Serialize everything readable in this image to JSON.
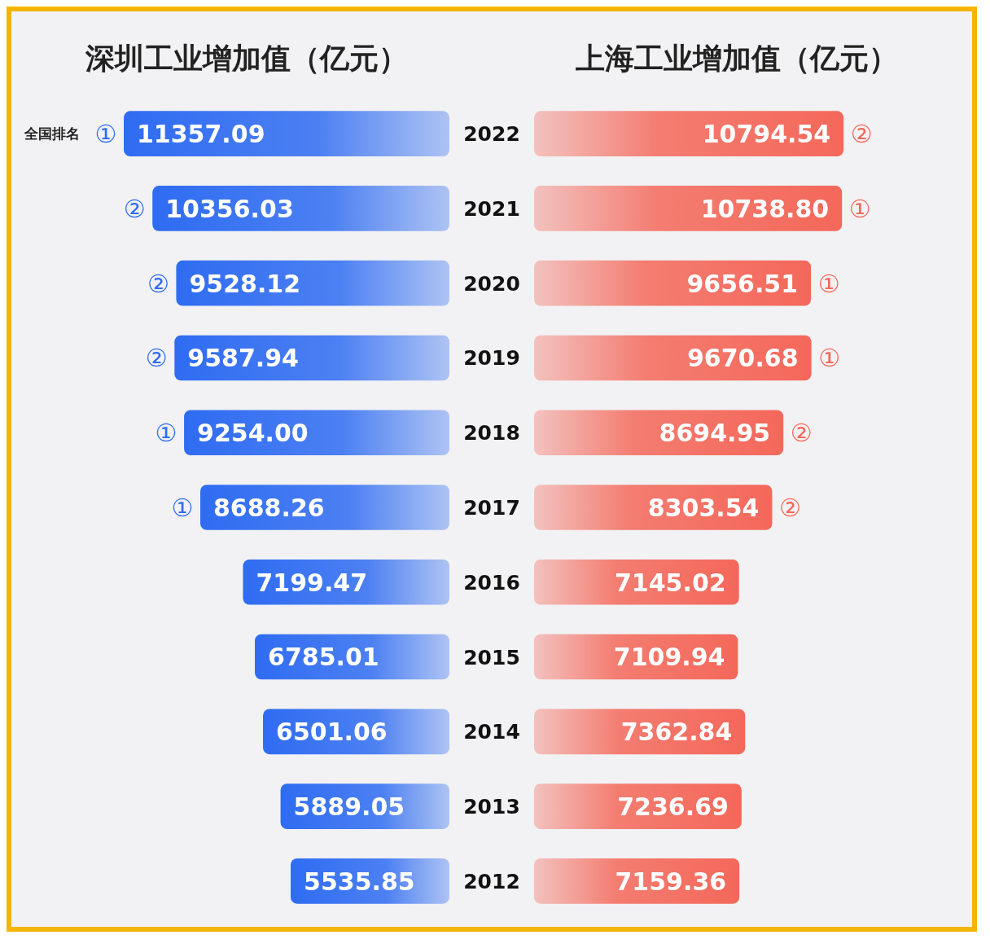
{
  "chart_data": [
    {
      "type": "bar",
      "orientation": "horizontal",
      "title": "深圳工业增加值（亿元）",
      "color": "#2f6cf2",
      "tick_labels": "y",
      "categories": [
        "2022",
        "2021",
        "2020",
        "2019",
        "2018",
        "2017",
        "2016",
        "2015",
        "2014",
        "2013",
        "2012"
      ],
      "values": [
        11357.09,
        10356.03,
        9528.12,
        9587.94,
        9254.0,
        8688.26,
        7199.47,
        6785.01,
        6501.06,
        5889.05,
        5535.85
      ],
      "value_labels": [
        "11357.09",
        "10356.03",
        "9528.12",
        "9587.94",
        "9254.00",
        "8688.26",
        "7199.47",
        "6785.01",
        "6501.06",
        "5889.05",
        "5535.85"
      ],
      "annotations": [
        "全国排名",
        {
          "text": "①",
          "x": 11357.09,
          "y": "2022"
        },
        {
          "text": "②",
          "x": 10356.03,
          "y": "2021"
        },
        {
          "text": "②",
          "x": 9528.12,
          "y": "2020"
        },
        {
          "text": "②",
          "x": 9587.94,
          "y": "2019"
        },
        {
          "text": "①",
          "x": 9254.0,
          "y": "2018"
        },
        {
          "text": "①",
          "x": 8688.26,
          "y": "2017"
        }
      ]
    },
    {
      "type": "bar",
      "orientation": "horizontal",
      "title": "上海工业增加值（亿元）",
      "color": "#f4685a",
      "tick_labels": false,
      "categories": [
        "2022",
        "2021",
        "2020",
        "2019",
        "2018",
        "2017",
        "2016",
        "2015",
        "2014",
        "2013",
        "2012"
      ],
      "values": [
        10794.54,
        10738.8,
        9656.51,
        9670.68,
        8694.95,
        8303.54,
        7145.02,
        7109.94,
        7362.84,
        7236.69,
        7159.36
      ],
      "value_labels": [
        "10794.54",
        "10738.80",
        "9656.51",
        "9670.68",
        "8694.95",
        "8303.54",
        "7145.02",
        "7109.94",
        "7362.84",
        "7236.69",
        "7159.36"
      ],
      "annotations": [
        {
          "text": "②",
          "x": 10794.54,
          "y": "2022"
        },
        {
          "text": "①",
          "x": 10738.8,
          "y": "2021"
        },
        {
          "text": "①",
          "x": 9656.51,
          "y": "2020"
        },
        {
          "text": "①",
          "x": 9670.68,
          "y": "2019"
        },
        {
          "text": "②",
          "x": 8694.95,
          "y": "2018"
        },
        {
          "text": "②",
          "x": 8303.54,
          "y": "2017"
        }
      ]
    }
  ]
}
